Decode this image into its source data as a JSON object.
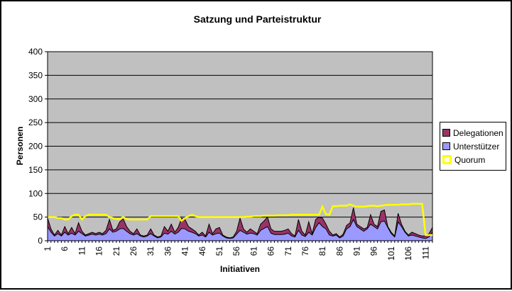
{
  "title": "Satzung und Parteistruktur",
  "colors": {
    "plot_background": "#C0C0C0",
    "gridline": "#000000",
    "axis": "#000000",
    "frame_border": "#000000",
    "delegationen": "#993366",
    "unterstuetzer": "#9999FF",
    "quorum": "#FFFF00"
  },
  "chart_data": {
    "type": "area",
    "title": "Satzung und Parteistruktur",
    "xlabel": "Initiativen",
    "ylabel": "Personen",
    "ylim": [
      0,
      400
    ],
    "ytick_step": 50,
    "x_start": 1,
    "x_label_step": 5,
    "x_last_label": 111,
    "n_points": 113,
    "grid": true,
    "legend_position": "right",
    "plot_bg": "#C0C0C0",
    "series": [
      {
        "name": "Delegationen",
        "type": "area",
        "color": "#993366",
        "values": [
          48,
          25,
          12,
          22,
          12,
          30,
          15,
          28,
          15,
          38,
          20,
          12,
          15,
          18,
          15,
          18,
          15,
          22,
          45,
          22,
          25,
          40,
          46,
          30,
          20,
          15,
          25,
          12,
          10,
          12,
          25,
          12,
          8,
          10,
          30,
          20,
          35,
          18,
          28,
          48,
          45,
          30,
          25,
          20,
          12,
          18,
          10,
          35,
          15,
          25,
          28,
          12,
          8,
          6,
          8,
          20,
          48,
          25,
          18,
          25,
          20,
          15,
          35,
          42,
          50,
          25,
          20,
          20,
          20,
          22,
          25,
          15,
          10,
          45,
          20,
          12,
          40,
          15,
          45,
          50,
          48,
          35,
          20,
          12,
          15,
          8,
          14,
          32,
          38,
          70,
          35,
          30,
          25,
          28,
          55,
          35,
          30,
          62,
          65,
          30,
          18,
          10,
          58,
          35,
          20,
          12,
          18,
          15,
          12,
          10,
          10,
          15,
          28
        ]
      },
      {
        "name": "Unterstützer",
        "type": "area",
        "color": "#9999FF",
        "values": [
          30,
          18,
          10,
          15,
          10,
          18,
          12,
          16,
          12,
          20,
          15,
          10,
          12,
          14,
          12,
          14,
          12,
          15,
          25,
          18,
          20,
          25,
          26,
          20,
          15,
          12,
          15,
          10,
          8,
          10,
          15,
          10,
          6,
          8,
          16,
          14,
          20,
          14,
          18,
          26,
          25,
          20,
          18,
          15,
          10,
          12,
          8,
          18,
          12,
          15,
          16,
          10,
          6,
          5,
          6,
          14,
          22,
          18,
          14,
          16,
          15,
          12,
          22,
          26,
          30,
          16,
          13,
          13,
          13,
          14,
          16,
          10,
          8,
          22,
          12,
          9,
          18,
          12,
          28,
          38,
          30,
          25,
          12,
          10,
          12,
          6,
          10,
          25,
          30,
          45,
          30,
          25,
          20,
          25,
          35,
          30,
          25,
          40,
          42,
          28,
          15,
          8,
          40,
          30,
          18,
          10,
          12,
          10,
          8,
          6,
          5,
          8,
          18
        ]
      },
      {
        "name": "Quorum",
        "type": "line",
        "color": "#FFFF00",
        "values": [
          50,
          50,
          50,
          48,
          48,
          45,
          45,
          52,
          55,
          55,
          45,
          52,
          55,
          55,
          55,
          55,
          55,
          55,
          50,
          48,
          46,
          46,
          50,
          46,
          45,
          45,
          45,
          45,
          45,
          45,
          52,
          52,
          52,
          52,
          52,
          52,
          52,
          52,
          52,
          42,
          48,
          52,
          55,
          52,
          50,
          50,
          50,
          50,
          50,
          50,
          50,
          50,
          50,
          50,
          50,
          50,
          50,
          50,
          51,
          51,
          52,
          52,
          52,
          53,
          53,
          53,
          53,
          54,
          54,
          54,
          54,
          55,
          55,
          55,
          55,
          55,
          55,
          55,
          55,
          55,
          72,
          56,
          55,
          73,
          73,
          74,
          74,
          74,
          77,
          74,
          72,
          72,
          72,
          73,
          74,
          74,
          73,
          74,
          75,
          76,
          76,
          76,
          76,
          77,
          77,
          77,
          78,
          78,
          78,
          78,
          12,
          12,
          12
        ]
      }
    ]
  },
  "legend": {
    "items": [
      {
        "label": "Delegationen"
      },
      {
        "label": "Unterstützer"
      },
      {
        "label": "Quorum"
      }
    ]
  }
}
